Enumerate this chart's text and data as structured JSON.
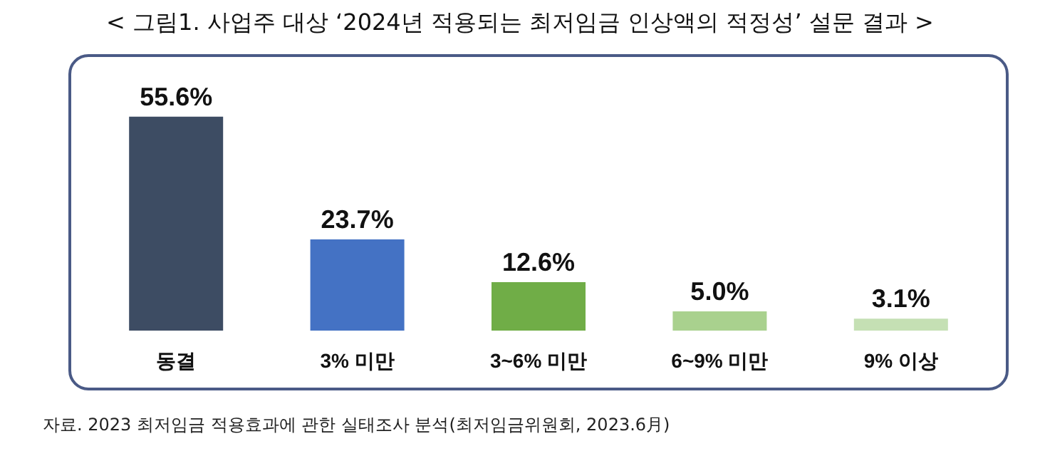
{
  "chart_data": {
    "type": "bar",
    "title": "< 그림1. 사업주 대상 ‘2024년 적용되는 최저임금 인상액의 적정성’ 설문 결과 >",
    "categories": [
      "동결",
      "3% 미만",
      "3~6% 미만",
      "6~9% 미만",
      "9% 이상"
    ],
    "values": [
      55.6,
      23.7,
      12.6,
      5.0,
      3.1
    ],
    "colors": [
      "#3d4c63",
      "#4472c4",
      "#70ad47",
      "#a9d18e",
      "#c5e0b4"
    ],
    "value_labels": [
      "55.6%",
      "23.7%",
      "12.6%",
      "5.0%",
      "3.1%"
    ],
    "annotations": [
      "자료. 2023 최저임금 적용효과에 관한 실태조사 분석(최저임금위원회, 2023.6月)"
    ]
  }
}
